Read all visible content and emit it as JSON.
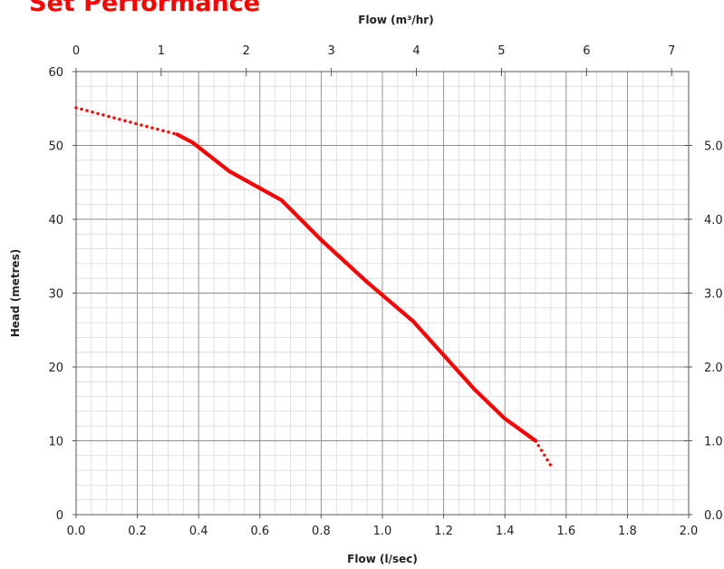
{
  "title": "Set Performance",
  "chart_data": {
    "type": "line",
    "title": "Set Performance",
    "xlabel": "Flow (l/sec)",
    "x2label": "Flow (m³/hr)",
    "ylabel": "Head (metres)",
    "xlim": [
      0,
      2.0
    ],
    "ylim": [
      0,
      60
    ],
    "x2lim": [
      0,
      7.2
    ],
    "y2lim": [
      0,
      6.0
    ],
    "x_ticks": [
      "0.0",
      "0.2",
      "0.4",
      "0.6",
      "0.8",
      "1.0",
      "1.2",
      "1.4",
      "1.6",
      "1.8",
      "2.0"
    ],
    "y_ticks": [
      "0",
      "10",
      "20",
      "30",
      "40",
      "50",
      "60"
    ],
    "x2_ticks": [
      "0",
      "1",
      "2",
      "3",
      "4",
      "5",
      "6",
      "7"
    ],
    "y2_ticks": [
      "0.0",
      "1.0",
      "2.0",
      "3.0",
      "4.0",
      "5.0"
    ],
    "grid": true,
    "line_color": "#ff0000",
    "series": [
      {
        "style": "solid",
        "x": [
          0.33,
          0.38,
          0.5,
          0.67,
          0.8,
          0.95,
          1.1,
          1.2,
          1.3,
          1.4,
          1.5
        ],
        "y": [
          51.5,
          50.4,
          46.5,
          42.6,
          37.2,
          31.5,
          26.2,
          21.6,
          17.0,
          13.0,
          10.0
        ]
      },
      {
        "style": "dotted",
        "x": [
          0.0,
          0.1,
          0.2,
          0.33
        ],
        "y": [
          55.1,
          54.0,
          52.9,
          51.5
        ]
      },
      {
        "style": "dotted",
        "x": [
          1.5,
          1.53,
          1.555
        ],
        "y": [
          10.0,
          8.0,
          6.3
        ]
      }
    ]
  }
}
